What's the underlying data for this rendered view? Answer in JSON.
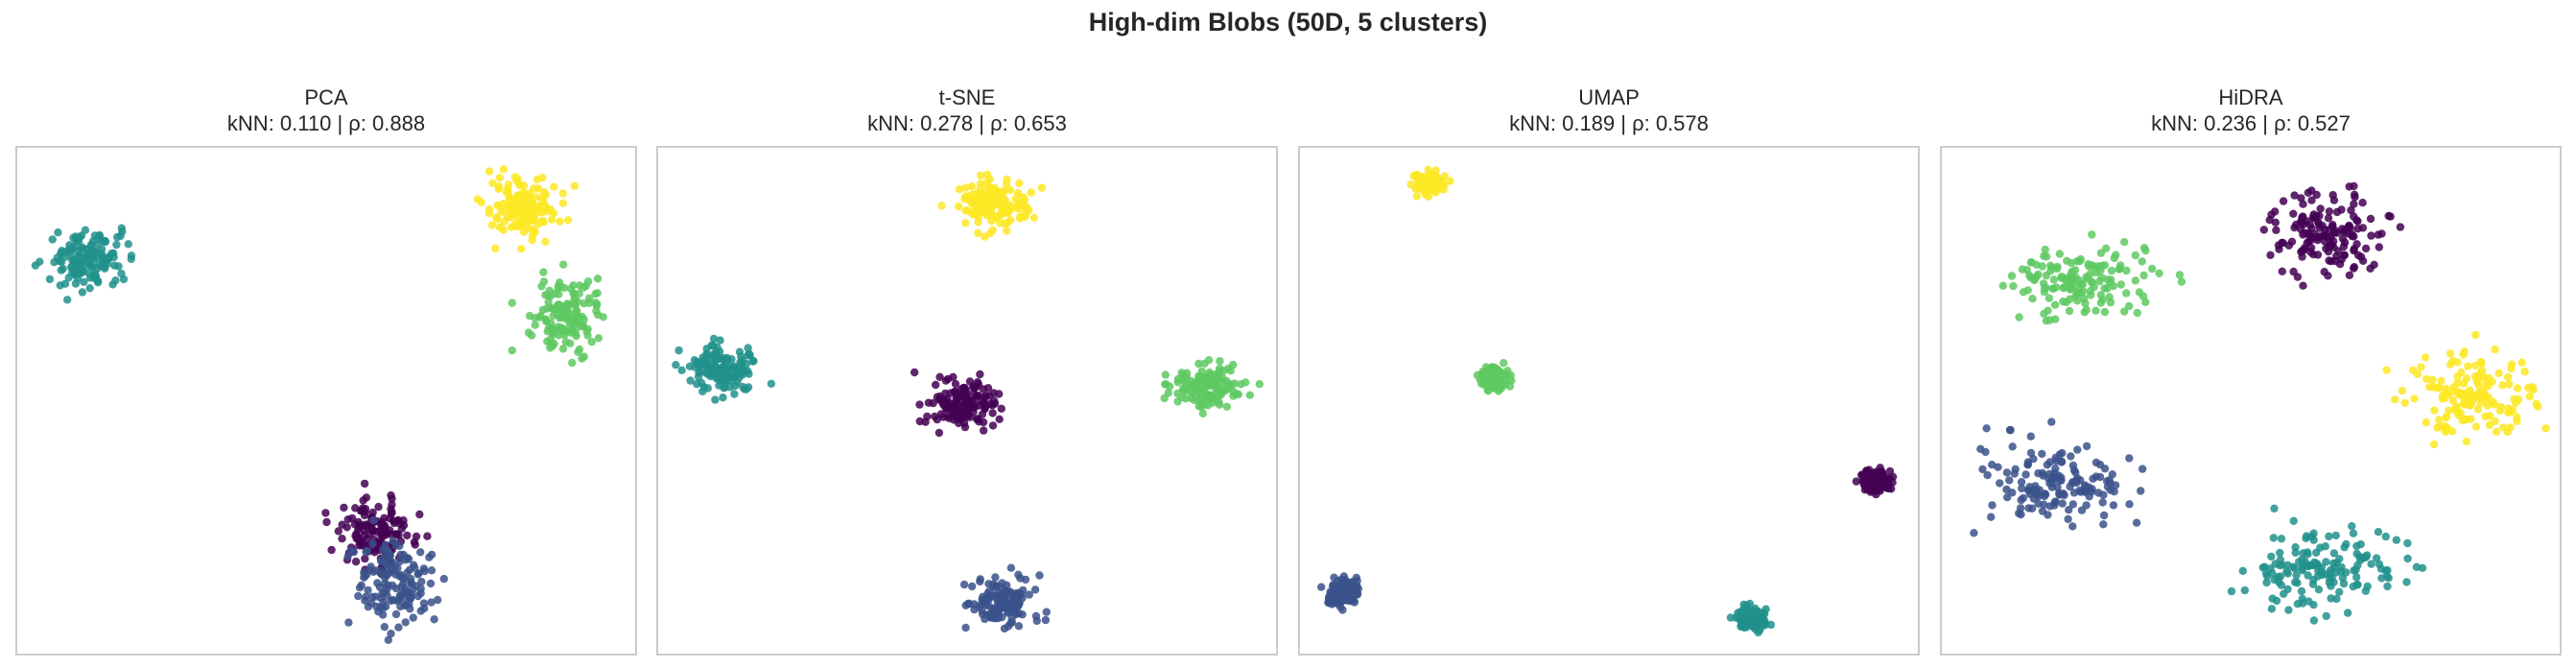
{
  "figure": {
    "title": "High-dim Blobs (50D, 5 clusters)"
  },
  "colors": {
    "c0": "#440154",
    "c1": "#3b528b",
    "c2": "#21918c",
    "c3": "#5ec962",
    "c4": "#fde725",
    "frame": "#cccccc"
  },
  "chart_data": [
    {
      "type": "scatter",
      "title": "PCA",
      "metrics": "kNN: 0.110 | ρ: 0.888",
      "grid": false,
      "axes_ticks": false,
      "xlim": [
        0,
        100
      ],
      "ylim": [
        0,
        100
      ],
      "series": [
        {
          "color_key": "c0",
          "center": [
            58,
            24
          ],
          "spread": [
            3.2,
            3.2
          ],
          "n": 140
        },
        {
          "color_key": "c1",
          "center": [
            61,
            14
          ],
          "spread": [
            3.0,
            4.3
          ],
          "n": 140
        },
        {
          "color_key": "c2",
          "center": [
            11.5,
            78
          ],
          "spread": [
            3.2,
            3.1
          ],
          "n": 140
        },
        {
          "color_key": "c3",
          "center": [
            88.5,
            67
          ],
          "spread": [
            2.8,
            3.3
          ],
          "n": 140
        },
        {
          "color_key": "c4",
          "center": [
            82,
            88
          ],
          "spread": [
            2.9,
            3.1
          ],
          "n": 140
        }
      ]
    },
    {
      "type": "scatter",
      "title": "t-SNE",
      "metrics": "kNN: 0.278 | ρ: 0.653",
      "grid": false,
      "axes_ticks": false,
      "xlim": [
        0,
        100
      ],
      "ylim": [
        0,
        100
      ],
      "series": [
        {
          "color_key": "c0",
          "center": [
            49,
            49
          ],
          "spread": [
            2.7,
            2.5
          ],
          "n": 140
        },
        {
          "color_key": "c1",
          "center": [
            56,
            10
          ],
          "spread": [
            2.7,
            2.4
          ],
          "n": 140
        },
        {
          "color_key": "c2",
          "center": [
            10.5,
            56
          ],
          "spread": [
            2.6,
            2.6
          ],
          "n": 140
        },
        {
          "color_key": "c3",
          "center": [
            89,
            53
          ],
          "spread": [
            2.9,
            2.2
          ],
          "n": 140
        },
        {
          "color_key": "c4",
          "center": [
            54,
            89
          ],
          "spread": [
            2.7,
            2.6
          ],
          "n": 140
        }
      ]
    },
    {
      "type": "scatter",
      "title": "UMAP",
      "metrics": "kNN: 0.189 | ρ: 0.578",
      "grid": false,
      "axes_ticks": false,
      "xlim": [
        0,
        100
      ],
      "ylim": [
        0,
        100
      ],
      "series": [
        {
          "color_key": "c0",
          "center": [
            93,
            34
          ],
          "spread": [
            1.2,
            1.1
          ],
          "n": 140
        },
        {
          "color_key": "c1",
          "center": [
            7,
            12
          ],
          "spread": [
            1.2,
            1.2
          ],
          "n": 140
        },
        {
          "color_key": "c2",
          "center": [
            73,
            7
          ],
          "spread": [
            1.1,
            1.0
          ],
          "n": 140
        },
        {
          "color_key": "c3",
          "center": [
            31.5,
            54.5
          ],
          "spread": [
            1.1,
            1.0
          ],
          "n": 140
        },
        {
          "color_key": "c4",
          "center": [
            21,
            93
          ],
          "spread": [
            1.1,
            1.1
          ],
          "n": 140
        }
      ]
    },
    {
      "type": "scatter",
      "title": "HiDRA",
      "metrics": "kNN: 0.236 | ρ: 0.527",
      "grid": false,
      "axes_ticks": false,
      "xlim": [
        0,
        100
      ],
      "ylim": [
        0,
        100
      ],
      "series": [
        {
          "color_key": "c0",
          "center": [
            62,
            83
          ],
          "spread": [
            5.0,
            3.9
          ],
          "n": 150
        },
        {
          "color_key": "c1",
          "center": [
            18,
            34
          ],
          "spread": [
            5.8,
            4.0
          ],
          "n": 150
        },
        {
          "color_key": "c2",
          "center": [
            61,
            17
          ],
          "spread": [
            5.6,
            3.9
          ],
          "n": 150
        },
        {
          "color_key": "c3",
          "center": [
            22,
            73.5
          ],
          "spread": [
            5.6,
            3.8
          ],
          "n": 150
        },
        {
          "color_key": "c4",
          "center": [
            85.5,
            51
          ],
          "spread": [
            5.6,
            4.0
          ],
          "n": 150
        }
      ]
    }
  ]
}
